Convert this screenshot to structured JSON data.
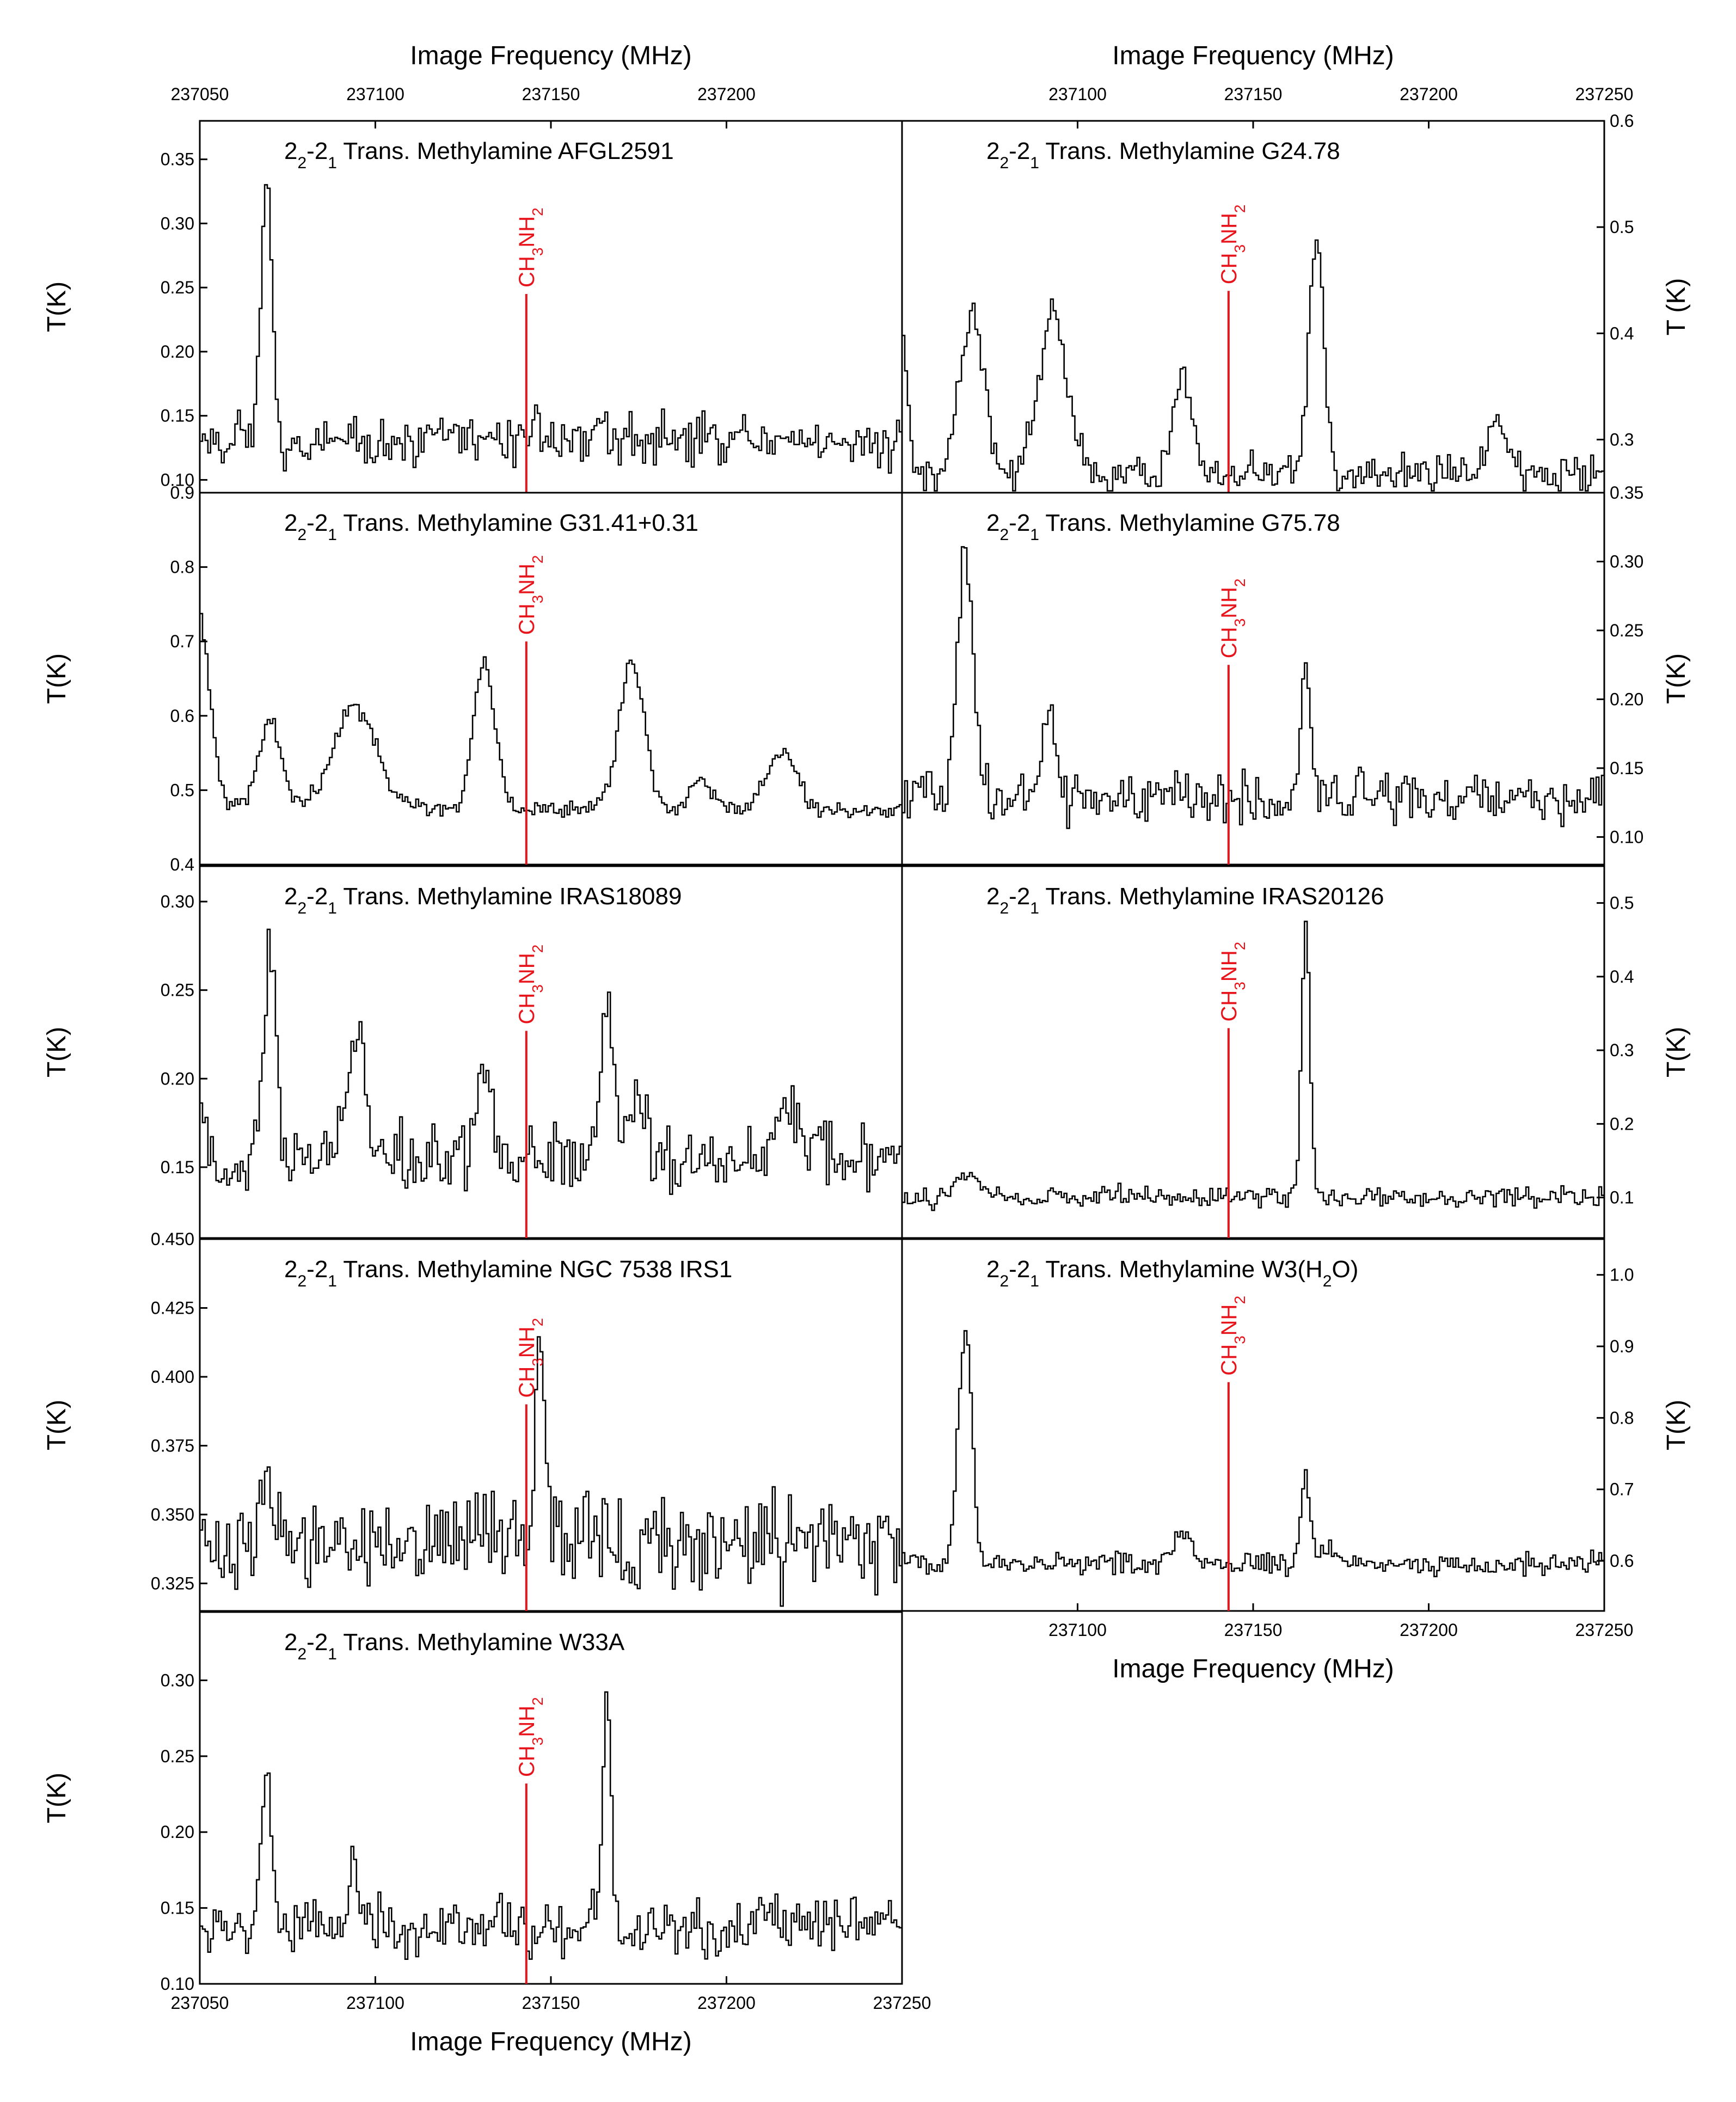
{
  "chart_data": {
    "type": "line",
    "line_color": "#000000",
    "marker_color": "#e8141b",
    "xlabel": "Image Frequency (MHz)",
    "marker": {
      "label_base": "CH",
      "sub1": "3",
      "label_mid": "NH",
      "sub2": "2",
      "x": 237143
    },
    "panel_title_prefix": {
      "main": "2",
      "sub1": "2",
      "dash": "-2",
      "sub2": "1",
      "rest": " Trans. Methylamine "
    },
    "panels": [
      {
        "id": "afgl2591",
        "source": "AFGL2591",
        "col": 0,
        "row": 0,
        "ylabel": "T(K)",
        "yaxis_side": "left",
        "xlim": [
          237050,
          237250
        ],
        "ylim": [
          0.09,
          0.38
        ],
        "yticks": [
          "0.10",
          "0.15",
          "0.20",
          "0.25",
          "0.30",
          "0.35"
        ],
        "xticks_top": [
          "237050",
          "237100",
          "237150",
          "237200"
        ],
        "xticks_bottom": [],
        "baseline": 0.13,
        "noise": 0.012,
        "marker_top": 0.245,
        "peaks": [
          [
            237069,
            0.215,
            1.6
          ],
          [
            237146,
            0.02,
            1.2
          ],
          [
            237164,
            0.025,
            1.3
          ],
          [
            237061,
            0.02,
            1.0
          ]
        ]
      },
      {
        "id": "g24",
        "source": "G24.78",
        "col": 1,
        "row": 0,
        "ylabel": "T (K)",
        "yaxis_side": "right",
        "xlim": [
          237050,
          237250
        ],
        "ylim": [
          0.25,
          0.6
        ],
        "yticks": [
          "0.3",
          "0.4",
          "0.5",
          "0.6"
        ],
        "xticks_top": [
          "237100",
          "237150",
          "237200",
          "237250"
        ],
        "xticks_bottom": [],
        "baseline": 0.265,
        "noise": 0.012,
        "marker_top": 0.44,
        "peaks": [
          [
            237050,
            0.14,
            1.5
          ],
          [
            237070,
            0.155,
            3.5
          ],
          [
            237093,
            0.155,
            4.0
          ],
          [
            237130,
            0.1,
            2.5
          ],
          [
            237168,
            0.225,
            2.2
          ],
          [
            237220,
            0.055,
            3.0
          ]
        ]
      },
      {
        "id": "g31",
        "source": "G31.41+0.31",
        "col": 0,
        "row": 1,
        "ylabel": "T(K)",
        "yaxis_side": "left",
        "xlim": [
          237050,
          237250
        ],
        "ylim": [
          0.4,
          0.9
        ],
        "yticks": [
          "0.4",
          "0.5",
          "0.6",
          "0.7",
          "0.8",
          "0.9"
        ],
        "xticks_top": [],
        "xticks_bottom": [],
        "baseline": 0.475,
        "noise": 0.008,
        "marker_top": 0.7,
        "peaks": [
          [
            237048,
            0.32,
            4.0
          ],
          [
            237070,
            0.12,
            3.0
          ],
          [
            237094,
            0.14,
            6.0
          ],
          [
            237131,
            0.2,
            3.0
          ],
          [
            237173,
            0.2,
            3.5
          ],
          [
            237193,
            0.04,
            3.0
          ],
          [
            237216,
            0.08,
            4.0
          ]
        ]
      },
      {
        "id": "g75",
        "source": "G75.78",
        "col": 1,
        "row": 1,
        "ylabel": "T(K)",
        "yaxis_side": "right",
        "xlim": [
          237050,
          237250
        ],
        "ylim": [
          0.08,
          0.35
        ],
        "yticks": [
          "0.10",
          "0.15",
          "0.20",
          "0.25",
          "0.30",
          "0.35"
        ],
        "xticks_top": [],
        "xticks_bottom": [],
        "baseline": 0.128,
        "noise": 0.012,
        "marker_top": 0.225,
        "peaks": [
          [
            237068,
            0.18,
            2.2
          ],
          [
            237092,
            0.08,
            1.5
          ],
          [
            237165,
            0.085,
            1.3
          ]
        ]
      },
      {
        "id": "iras18089",
        "source": "IRAS18089",
        "col": 0,
        "row": 2,
        "ylabel": "T(K)",
        "yaxis_side": "left",
        "xlim": [
          237050,
          237250
        ],
        "ylim": [
          0.11,
          0.32
        ],
        "yticks": [
          "0.15",
          "0.20",
          "0.25",
          "0.30"
        ],
        "xticks_top": [],
        "xticks_bottom": [],
        "baseline": 0.155,
        "noise": 0.012,
        "marker_top": 0.227,
        "peaks": [
          [
            237048,
            0.09,
            2.0
          ],
          [
            237070,
            0.12,
            1.6
          ],
          [
            237095,
            0.07,
            2.5
          ],
          [
            237131,
            0.06,
            2.0
          ],
          [
            237166,
            0.08,
            2.0
          ],
          [
            237175,
            0.03,
            2.0
          ],
          [
            237218,
            0.035,
            3.0
          ]
        ]
      },
      {
        "id": "iras20126",
        "source": "IRAS20126",
        "col": 1,
        "row": 2,
        "ylabel": "T(K)",
        "yaxis_side": "right",
        "xlim": [
          237050,
          237250
        ],
        "ylim": [
          0.045,
          0.55
        ],
        "yticks": [
          "0.1",
          "0.2",
          "0.3",
          "0.4",
          "0.5"
        ],
        "xticks_top": [],
        "xticks_bottom": [],
        "baseline": 0.1,
        "noise": 0.009,
        "marker_top": 0.33,
        "peaks": [
          [
            237069,
            0.04,
            3.0
          ],
          [
            237165,
            0.38,
            1.2
          ]
        ]
      },
      {
        "id": "ngc7538",
        "source": "NGC 7538 IRS1",
        "col": 0,
        "row": 3,
        "ylabel": "T(K)",
        "yaxis_side": "left",
        "xlim": [
          237050,
          237250
        ],
        "ylim": [
          0.315,
          0.45
        ],
        "yticks": [
          "0.325",
          "0.350",
          "0.375",
          "0.400",
          "0.425",
          "0.450"
        ],
        "xticks_top": [],
        "xticks_bottom": [],
        "baseline": 0.34,
        "noise": 0.011,
        "marker_top": 0.39,
        "peaks": [
          [
            237147,
            0.07,
            1.3
          ],
          [
            237069,
            0.02,
            2.0
          ]
        ]
      },
      {
        "id": "w3h2o",
        "source": "W3(H",
        "source_sub": "2",
        "source_end": "O)",
        "col": 1,
        "row": 3,
        "ylabel": "T(K)",
        "yaxis_side": "right",
        "xlim": [
          237050,
          237250
        ],
        "ylim": [
          0.53,
          1.05
        ],
        "yticks": [
          "0.6",
          "0.7",
          "0.8",
          "0.9",
          "1.0"
        ],
        "xticks_top": [],
        "xticks_bottom": [
          "237100",
          "237150",
          "237200",
          "237250"
        ],
        "xlabel_bottom": true,
        "baseline": 0.595,
        "noise": 0.009,
        "marker_top": 0.85,
        "peaks": [
          [
            237048,
            0.08,
            1.5
          ],
          [
            237068,
            0.33,
            2.0
          ],
          [
            237130,
            0.045,
            2.5
          ],
          [
            237165,
            0.13,
            1.3
          ],
          [
            237171,
            0.03,
            2.0
          ]
        ]
      },
      {
        "id": "w33a",
        "source": "W33A",
        "col": 0,
        "row": 4,
        "ylabel": "T(K)",
        "yaxis_side": "left",
        "xlim": [
          237050,
          237250
        ],
        "ylim": [
          0.1,
          0.345
        ],
        "yticks": [
          "0.10",
          "0.15",
          "0.20",
          "0.25",
          "0.30"
        ],
        "xticks_top": [],
        "xticks_bottom": [
          "237050",
          "237100",
          "237150",
          "237200",
          "237250"
        ],
        "xlabel_bottom": true,
        "baseline": 0.138,
        "noise": 0.012,
        "marker_top": 0.232,
        "peaks": [
          [
            237069,
            0.1,
            1.5
          ],
          [
            237094,
            0.045,
            1.5
          ],
          [
            237166,
            0.145,
            1.3
          ]
        ]
      }
    ]
  }
}
